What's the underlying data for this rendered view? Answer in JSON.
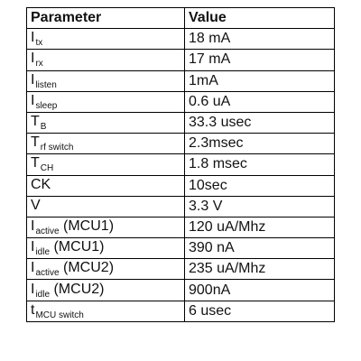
{
  "table": {
    "headers": [
      "Parameter",
      "Value"
    ],
    "rows": [
      {
        "sym": "I",
        "sub": "tx",
        "suffix": "",
        "value": "18 mA"
      },
      {
        "sym": "I",
        "sub": "rx",
        "suffix": "",
        "value": "17 mA"
      },
      {
        "sym": "I",
        "sub": "listen",
        "suffix": "",
        "value": "1mA"
      },
      {
        "sym": "I",
        "sub": "sleep",
        "suffix": "",
        "value": "0.6 uA"
      },
      {
        "sym": "T",
        "sub": "B",
        "suffix": "",
        "value": "33.3 usec"
      },
      {
        "sym": "T",
        "sub": "rf switch",
        "suffix": "",
        "value": "2.3msec"
      },
      {
        "sym": "T",
        "sub": "CH",
        "suffix": "",
        "value": "1.8 msec"
      },
      {
        "sym": "CK",
        "sub": "",
        "suffix": "",
        "value": "10sec"
      },
      {
        "sym": "V",
        "sub": "",
        "suffix": "",
        "value": "3.3 V"
      },
      {
        "sym": "I",
        "sub": "active",
        "suffix": " (MCU1)",
        "value": "120 uA/Mhz"
      },
      {
        "sym": "I",
        "sub": "idle",
        "suffix": " (MCU1)",
        "value": "390 nA"
      },
      {
        "sym": "I",
        "sub": "active",
        "suffix": " (MCU2)",
        "value": "235 uA/Mhz"
      },
      {
        "sym": "I",
        "sub": "idle",
        "suffix": " (MCU2)",
        "value": "900nA"
      },
      {
        "sym": "t",
        "sub": "MCU switch",
        "suffix": "",
        "value": "6 usec"
      }
    ]
  }
}
